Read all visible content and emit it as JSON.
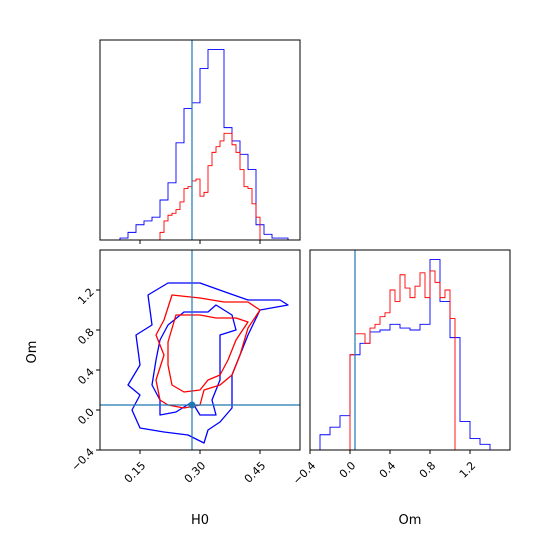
{
  "chart_data": [
    {
      "type": "area",
      "panel": "H0 marginal",
      "xlabel": "",
      "ylabel": "",
      "xlim": [
        0.05,
        0.55
      ],
      "ylim": [
        0,
        1.05
      ],
      "xticks": [
        0.15,
        0.3,
        0.45
      ],
      "truth_line": {
        "x": 0.28,
        "color": "#1f77b4"
      },
      "series": [
        {
          "color": "#0000ff",
          "bins": [
            0.1,
            0.12,
            0.14,
            0.16,
            0.18,
            0.2,
            0.22,
            0.24,
            0.26,
            0.28,
            0.3,
            0.32,
            0.34,
            0.36,
            0.38,
            0.4,
            0.42,
            0.44,
            0.46,
            0.48,
            0.5,
            0.52
          ],
          "values": [
            0.01,
            0.04,
            0.08,
            0.1,
            0.12,
            0.21,
            0.3,
            0.51,
            0.69,
            0.72,
            0.9,
            1.0,
            1.0,
            0.59,
            0.52,
            0.45,
            0.37,
            0.08,
            0.03,
            0.01,
            0.01
          ]
        },
        {
          "color": "#ff0000",
          "bins": [
            0.2,
            0.21,
            0.22,
            0.23,
            0.24,
            0.25,
            0.26,
            0.27,
            0.28,
            0.29,
            0.3,
            0.31,
            0.32,
            0.33,
            0.34,
            0.35,
            0.36,
            0.37,
            0.38,
            0.39,
            0.4,
            0.41,
            0.42,
            0.43,
            0.44,
            0.45
          ],
          "values": [
            0.04,
            0.1,
            0.13,
            0.14,
            0.16,
            0.2,
            0.27,
            0.28,
            0.31,
            0.32,
            0.23,
            0.25,
            0.39,
            0.46,
            0.49,
            0.52,
            0.56,
            0.56,
            0.5,
            0.46,
            0.37,
            0.28,
            0.27,
            0.19,
            0.12
          ]
        }
      ]
    },
    {
      "type": "scatter",
      "panel": "H0 vs Om 2D contours",
      "xlabel": "H0",
      "ylabel": "Om",
      "xlim": [
        0.05,
        0.55
      ],
      "ylim": [
        -0.4,
        1.6
      ],
      "xticks": [
        0.15,
        0.3,
        0.45
      ],
      "yticks": [
        -0.4,
        0.0,
        0.4,
        0.8,
        1.2
      ],
      "truth": {
        "x": 0.28,
        "y": 0.05,
        "color": "#1f77b4"
      },
      "contours": [
        {
          "color": "#0000ff",
          "level": "outer",
          "points": [
            [
              0.17,
              1.15
            ],
            [
              0.22,
              1.27
            ],
            [
              0.3,
              1.27
            ],
            [
              0.37,
              1.17
            ],
            [
              0.42,
              1.1
            ],
            [
              0.5,
              1.1
            ],
            [
              0.52,
              1.05
            ],
            [
              0.45,
              1.0
            ],
            [
              0.42,
              0.75
            ],
            [
              0.38,
              0.35
            ],
            [
              0.38,
              0.02
            ],
            [
              0.35,
              -0.12
            ],
            [
              0.32,
              -0.2
            ],
            [
              0.31,
              -0.33
            ],
            [
              0.27,
              -0.25
            ],
            [
              0.21,
              -0.22
            ],
            [
              0.15,
              -0.18
            ],
            [
              0.13,
              0.0
            ],
            [
              0.15,
              0.15
            ],
            [
              0.12,
              0.25
            ],
            [
              0.15,
              0.45
            ],
            [
              0.14,
              0.75
            ],
            [
              0.18,
              0.85
            ],
            [
              0.17,
              1.15
            ]
          ]
        },
        {
          "color": "#0000ff",
          "level": "inner",
          "points": [
            [
              0.22,
              0.85
            ],
            [
              0.26,
              0.98
            ],
            [
              0.32,
              0.98
            ],
            [
              0.34,
              1.05
            ],
            [
              0.38,
              0.95
            ],
            [
              0.39,
              0.8
            ],
            [
              0.35,
              0.75
            ],
            [
              0.35,
              0.45
            ],
            [
              0.35,
              0.3
            ],
            [
              0.33,
              0.1
            ],
            [
              0.34,
              -0.05
            ],
            [
              0.3,
              -0.05
            ],
            [
              0.28,
              0.08
            ],
            [
              0.24,
              -0.02
            ],
            [
              0.2,
              -0.05
            ],
            [
              0.2,
              0.1
            ],
            [
              0.18,
              0.25
            ],
            [
              0.19,
              0.5
            ],
            [
              0.2,
              0.7
            ],
            [
              0.22,
              0.85
            ]
          ]
        },
        {
          "color": "#ff0000",
          "level": "outer",
          "points": [
            [
              0.23,
              1.15
            ],
            [
              0.3,
              1.12
            ],
            [
              0.36,
              1.08
            ],
            [
              0.42,
              1.08
            ],
            [
              0.45,
              1.0
            ],
            [
              0.42,
              0.82
            ],
            [
              0.4,
              0.55
            ],
            [
              0.38,
              0.35
            ],
            [
              0.35,
              0.25
            ],
            [
              0.31,
              0.2
            ],
            [
              0.3,
              0.05
            ],
            [
              0.26,
              0.02
            ],
            [
              0.22,
              0.05
            ],
            [
              0.2,
              0.1
            ],
            [
              0.19,
              0.3
            ],
            [
              0.21,
              0.55
            ],
            [
              0.19,
              0.75
            ],
            [
              0.21,
              0.9
            ],
            [
              0.23,
              1.15
            ]
          ]
        },
        {
          "color": "#ff0000",
          "level": "inner",
          "points": [
            [
              0.24,
              0.95
            ],
            [
              0.3,
              0.95
            ],
            [
              0.34,
              0.92
            ],
            [
              0.39,
              0.92
            ],
            [
              0.42,
              0.88
            ],
            [
              0.39,
              0.7
            ],
            [
              0.37,
              0.5
            ],
            [
              0.35,
              0.35
            ],
            [
              0.32,
              0.3
            ],
            [
              0.3,
              0.2
            ],
            [
              0.26,
              0.18
            ],
            [
              0.23,
              0.25
            ],
            [
              0.22,
              0.45
            ],
            [
              0.22,
              0.68
            ],
            [
              0.24,
              0.95
            ]
          ]
        }
      ]
    },
    {
      "type": "area",
      "panel": "Om marginal",
      "xlabel": "Om",
      "ylabel": "",
      "xlim": [
        -0.4,
        1.6
      ],
      "ylim": [
        0,
        1.05
      ],
      "xticks": [
        -0.4,
        0.0,
        0.4,
        0.8,
        1.2
      ],
      "truth_line": {
        "x": 0.05,
        "color": "#1f77b4"
      },
      "series": [
        {
          "color": "#0000ff",
          "bins": [
            -0.3,
            -0.2,
            -0.1,
            0.0,
            0.1,
            0.2,
            0.3,
            0.4,
            0.5,
            0.6,
            0.7,
            0.8,
            0.9,
            1.0,
            1.1,
            1.2,
            1.3,
            1.4
          ],
          "values": [
            0.08,
            0.12,
            0.18,
            0.5,
            0.56,
            0.62,
            0.63,
            0.66,
            0.64,
            0.63,
            0.66,
            1.0,
            0.78,
            0.59,
            0.15,
            0.06,
            0.03
          ]
        },
        {
          "color": "#ff0000",
          "bins": [
            0.0,
            0.05,
            0.1,
            0.15,
            0.2,
            0.25,
            0.3,
            0.35,
            0.4,
            0.45,
            0.5,
            0.55,
            0.6,
            0.65,
            0.7,
            0.75,
            0.8,
            0.85,
            0.9,
            0.95,
            1.0,
            1.05
          ],
          "values": [
            0.5,
            0.61,
            0.61,
            0.56,
            0.64,
            0.66,
            0.7,
            0.72,
            0.84,
            0.78,
            0.92,
            0.85,
            0.8,
            0.86,
            0.93,
            0.8,
            0.94,
            0.88,
            0.8,
            0.84,
            0.69
          ]
        }
      ]
    }
  ]
}
